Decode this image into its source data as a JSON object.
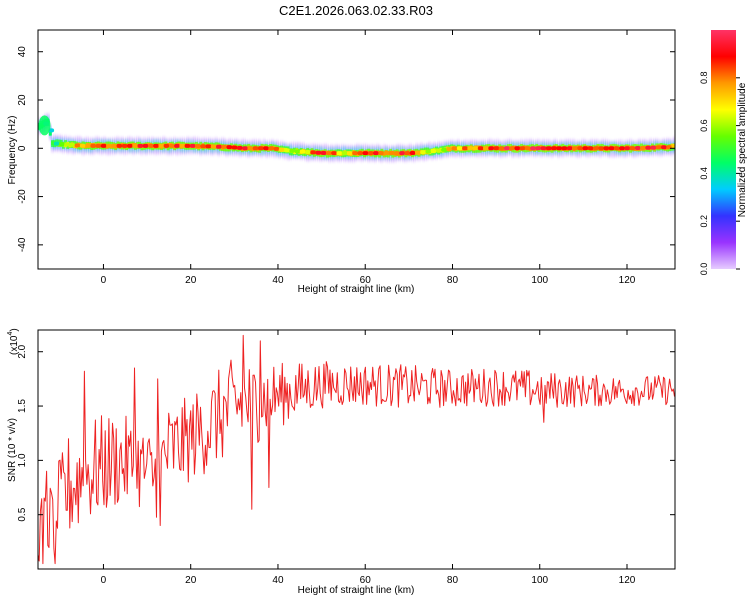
{
  "title": "C2E1.2026.063.02.33.R03",
  "chart_data": [
    {
      "type": "heatmap",
      "title": "",
      "xlabel": "Height of straight line (km)",
      "ylabel": "Frequency (Hz)",
      "xlim": [
        -15,
        131
      ],
      "ylim": [
        -50,
        49
      ],
      "x_ticks": [
        0,
        20,
        40,
        60,
        80,
        100,
        120
      ],
      "y_ticks": [
        -40,
        -20,
        0,
        20,
        40
      ],
      "colorbar": {
        "label": "Normalized spectral amplitude",
        "range": [
          0.0,
          1.0
        ],
        "ticks": [
          0.0,
          0.2,
          0.4,
          0.6,
          0.8
        ],
        "tick_labels": [
          "0.0",
          "0.2",
          "0.4",
          "0.6",
          "0.8"
        ],
        "colors": [
          "#e6ccff",
          "#9933ff",
          "#3333ff",
          "#00ccff",
          "#00ff66",
          "#66ff00",
          "#ffff00",
          "#ff9900",
          "#ff0000",
          "#ff3366"
        ]
      },
      "trace": {
        "description_points": [
          {
            "x": -15,
            "y": 9,
            "amp": 0.45
          },
          {
            "x": -13,
            "y": 11,
            "amp": 0.4
          },
          {
            "x": -12,
            "y": 2,
            "amp": 0.5
          },
          {
            "x": -5,
            "y": 1,
            "amp": 0.85
          },
          {
            "x": 0,
            "y": 1,
            "amp": 0.9
          },
          {
            "x": 10,
            "y": 1,
            "amp": 0.9
          },
          {
            "x": 20,
            "y": 1,
            "amp": 0.9
          },
          {
            "x": 28,
            "y": 0.5,
            "amp": 0.9
          },
          {
            "x": 32,
            "y": 0,
            "amp": 0.9
          },
          {
            "x": 38,
            "y": 0,
            "amp": 0.9
          },
          {
            "x": 42,
            "y": -1,
            "amp": 0.6
          },
          {
            "x": 50,
            "y": -2,
            "amp": 0.95
          },
          {
            "x": 55,
            "y": -2,
            "amp": 0.7
          },
          {
            "x": 60,
            "y": -2,
            "amp": 0.9
          },
          {
            "x": 70,
            "y": -2,
            "amp": 0.95
          },
          {
            "x": 76,
            "y": -1,
            "amp": 0.6
          },
          {
            "x": 80,
            "y": 0,
            "amp": 0.8
          },
          {
            "x": 90,
            "y": 0,
            "amp": 0.95
          },
          {
            "x": 100,
            "y": 0,
            "amp": 0.95
          },
          {
            "x": 110,
            "y": 0,
            "amp": 0.95
          },
          {
            "x": 120,
            "y": 0,
            "amp": 0.95
          },
          {
            "x": 129,
            "y": 0.5,
            "amp": 0.9
          },
          {
            "x": 131,
            "y": 1,
            "amp": 0.6
          }
        ]
      },
      "grid": false
    },
    {
      "type": "line",
      "title": "",
      "xlabel": "Height of straight line (km)",
      "ylabel": "SNR (10 * v/v)",
      "y_multiplier": "(x10",
      "y_multiplier_exp": "4",
      "y_multiplier_close": ")",
      "xlim": [
        -15,
        131
      ],
      "ylim": [
        0,
        2.2
      ],
      "x_ticks": [
        0,
        20,
        40,
        60,
        80,
        100,
        120
      ],
      "y_ticks": [
        0.5,
        1.0,
        1.5,
        2.0
      ],
      "y_tick_labels": [
        "0.5",
        "1.0",
        "1.5",
        "2.0"
      ],
      "series": [
        {
          "color": "#ee2222",
          "envelope": [
            {
              "x": -15,
              "mean": 0.35,
              "amp": 0.3
            },
            {
              "x": -12,
              "mean": 0.45,
              "amp": 0.35
            },
            {
              "x": -8,
              "mean": 0.75,
              "amp": 0.5
            },
            {
              "x": -3,
              "mean": 0.9,
              "amp": 0.5
            },
            {
              "x": 3,
              "mean": 1.0,
              "amp": 0.45
            },
            {
              "x": 8,
              "mean": 0.95,
              "amp": 0.4
            },
            {
              "x": 12,
              "mean": 0.85,
              "amp": 0.4
            },
            {
              "x": 14,
              "mean": 1.05,
              "amp": 0.45
            },
            {
              "x": 20,
              "mean": 1.2,
              "amp": 0.4
            },
            {
              "x": 25,
              "mean": 1.35,
              "amp": 0.45
            },
            {
              "x": 30,
              "mean": 1.5,
              "amp": 0.45
            },
            {
              "x": 35,
              "mean": 1.55,
              "amp": 0.4
            },
            {
              "x": 40,
              "mean": 1.6,
              "amp": 0.3
            },
            {
              "x": 50,
              "mean": 1.7,
              "amp": 0.22
            },
            {
              "x": 60,
              "mean": 1.7,
              "amp": 0.2
            },
            {
              "x": 70,
              "mean": 1.68,
              "amp": 0.2
            },
            {
              "x": 80,
              "mean": 1.66,
              "amp": 0.18
            },
            {
              "x": 90,
              "mean": 1.68,
              "amp": 0.18
            },
            {
              "x": 100,
              "mean": 1.65,
              "amp": 0.18
            },
            {
              "x": 110,
              "mean": 1.64,
              "amp": 0.15
            },
            {
              "x": 120,
              "mean": 1.64,
              "amp": 0.14
            },
            {
              "x": 131,
              "mean": 1.65,
              "amp": 0.14
            }
          ],
          "peaks": [
            {
              "x": -14,
              "y": 0.05
            },
            {
              "x": -13,
              "y": 0.9
            },
            {
              "x": -11,
              "y": 0.05
            },
            {
              "x": -4.5,
              "y": 1.82
            },
            {
              "x": 7,
              "y": 1.85
            },
            {
              "x": 12.5,
              "y": 1.75
            },
            {
              "x": 13,
              "y": 0.4
            },
            {
              "x": 32,
              "y": 2.15
            },
            {
              "x": 34,
              "y": 0.55
            },
            {
              "x": 36,
              "y": 2.1
            },
            {
              "x": 38,
              "y": 0.75
            },
            {
              "x": 101,
              "y": 1.35
            }
          ]
        }
      ],
      "grid": false
    }
  ]
}
